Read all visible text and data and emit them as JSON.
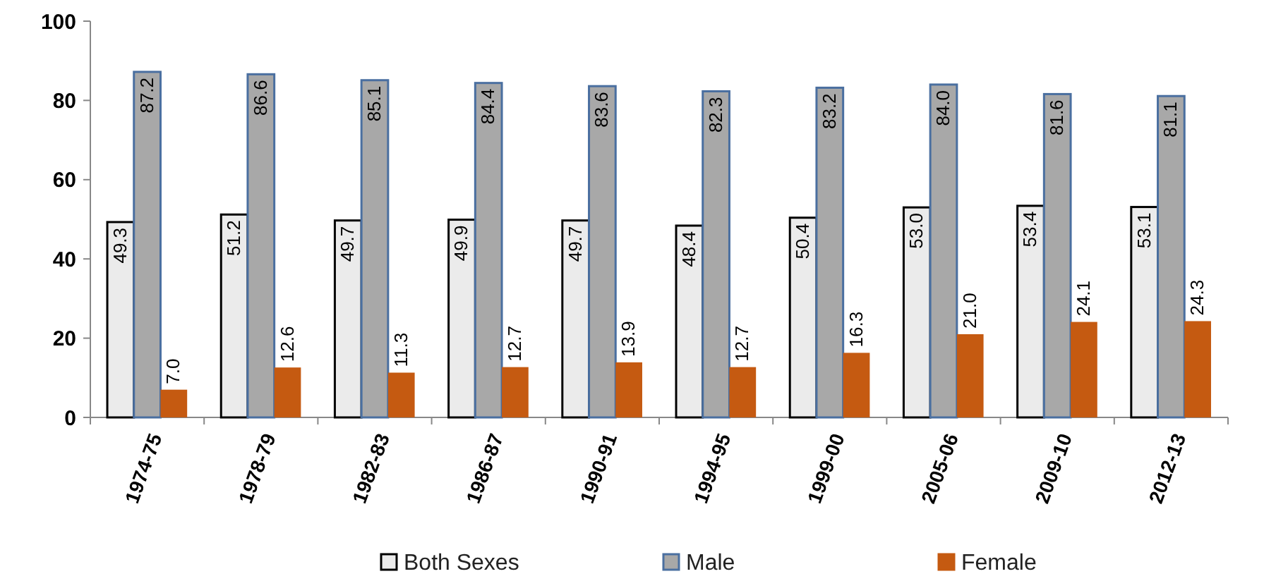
{
  "chart_data": {
    "type": "bar",
    "categories": [
      "1974-75",
      "1978-79",
      "1982-83",
      "1986-87",
      "1990-91",
      "1994-95",
      "1999-00",
      "2005-06",
      "2009-10",
      "2012-13"
    ],
    "series": [
      {
        "name": "Both Sexes",
        "color": "#ebebeb",
        "values": [
          49.3,
          51.2,
          49.7,
          49.9,
          49.7,
          48.4,
          50.4,
          53.0,
          53.4,
          53.1
        ],
        "value_labels": [
          "49.3",
          "51.2",
          "49.7",
          "49.9",
          "49.7",
          "48.4",
          "50.4",
          "53.0",
          "53.4",
          "53.1"
        ]
      },
      {
        "name": "Male",
        "color": "#a8a8a8",
        "values": [
          87.2,
          86.6,
          85.1,
          84.4,
          83.6,
          82.3,
          83.2,
          84.0,
          81.6,
          81.1
        ],
        "value_labels": [
          "87.2",
          "86.6",
          "85.1",
          "84.4",
          "83.6",
          "82.3",
          "83.2",
          "84.0",
          "81.6",
          "81.1"
        ]
      },
      {
        "name": "Female",
        "color": "#c55a11",
        "values": [
          7.0,
          12.6,
          11.3,
          12.7,
          13.9,
          12.7,
          16.3,
          21.0,
          24.1,
          24.3
        ],
        "value_labels": [
          "7.0",
          "12.6",
          "11.3",
          "12.7",
          "13.9",
          "12.7",
          "16.3",
          "21.0",
          "24.1",
          "24.3"
        ]
      }
    ],
    "ylim": [
      0,
      100
    ],
    "yticks": [
      0,
      20,
      40,
      60,
      80,
      100
    ],
    "grid": false,
    "legend": "bottom"
  }
}
